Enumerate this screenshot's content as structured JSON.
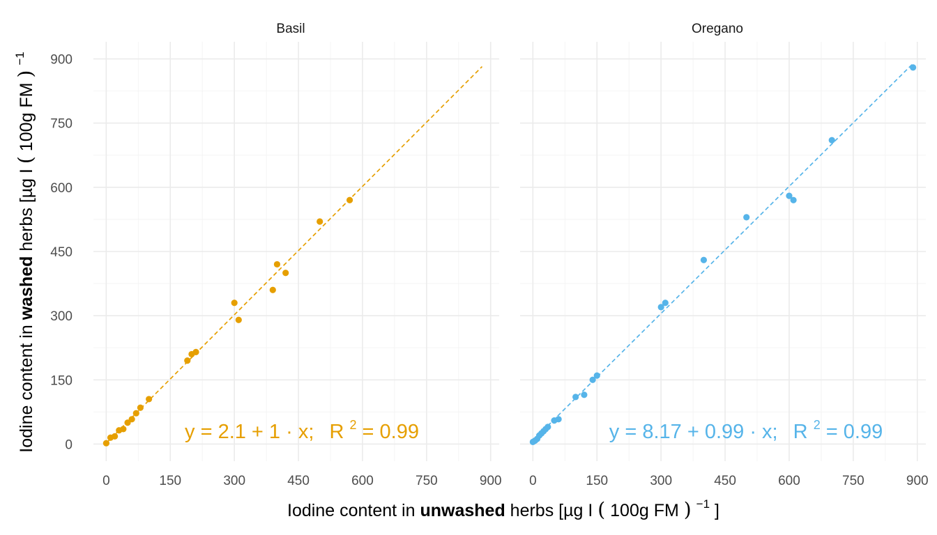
{
  "chart_data": {
    "type": "scatter",
    "x_title": {
      "prefix": "Iodine content in ",
      "bold": "unwashed",
      "suffix": " herbs [µg I ",
      "paren_open": "(",
      "unit": "100g FM",
      "paren_close": ")",
      "exp": "−1",
      "end": "]"
    },
    "y_title": {
      "prefix": "Iodine content in ",
      "bold": "washed",
      "suffix": " herbs [µg I ",
      "paren_open": "(",
      "unit": "100g FM",
      "paren_close": ")",
      "exp": "−1"
    },
    "xlim": [
      -30,
      920
    ],
    "ylim": [
      -40,
      940
    ],
    "x_ticks": [
      0,
      150,
      300,
      450,
      600,
      750,
      900
    ],
    "y_ticks": [
      0,
      150,
      300,
      450,
      600,
      750,
      900
    ],
    "grid": true,
    "legend": "none",
    "panels": [
      {
        "title": "Basil",
        "color": "#E69F00",
        "fit": {
          "intercept": 2.1,
          "slope": 1.0,
          "x_range": [
            0,
            880
          ]
        },
        "equation": {
          "lhs": "y = 2.1 + 1 · x;",
          "r_label": "R",
          "r_exp": "2",
          "r_value": " = 0.99"
        },
        "points": [
          [
            0,
            2
          ],
          [
            10,
            15
          ],
          [
            20,
            18
          ],
          [
            30,
            32
          ],
          [
            40,
            35
          ],
          [
            50,
            50
          ],
          [
            60,
            58
          ],
          [
            70,
            72
          ],
          [
            80,
            85
          ],
          [
            100,
            105
          ],
          [
            190,
            195
          ],
          [
            200,
            210
          ],
          [
            210,
            215
          ],
          [
            300,
            330
          ],
          [
            310,
            290
          ],
          [
            390,
            360
          ],
          [
            400,
            420
          ],
          [
            420,
            400
          ],
          [
            500,
            520
          ],
          [
            570,
            570
          ]
        ]
      },
      {
        "title": "Oregano",
        "color": "#56B4E9",
        "fit": {
          "intercept": 8.17,
          "slope": 0.99,
          "x_range": [
            0,
            890
          ]
        },
        "equation": {
          "lhs": "y = 8.17 + 0.99 · x;",
          "r_label": "R",
          "r_exp": "2",
          "r_value": " = 0.99"
        },
        "points": [
          [
            0,
            5
          ],
          [
            5,
            8
          ],
          [
            10,
            12
          ],
          [
            15,
            20
          ],
          [
            20,
            25
          ],
          [
            25,
            30
          ],
          [
            30,
            35
          ],
          [
            35,
            40
          ],
          [
            50,
            55
          ],
          [
            60,
            58
          ],
          [
            100,
            110
          ],
          [
            120,
            115
          ],
          [
            140,
            150
          ],
          [
            150,
            160
          ],
          [
            300,
            320
          ],
          [
            310,
            330
          ],
          [
            400,
            430
          ],
          [
            500,
            530
          ],
          [
            600,
            580
          ],
          [
            610,
            570
          ],
          [
            700,
            710
          ],
          [
            890,
            880
          ]
        ]
      }
    ]
  }
}
